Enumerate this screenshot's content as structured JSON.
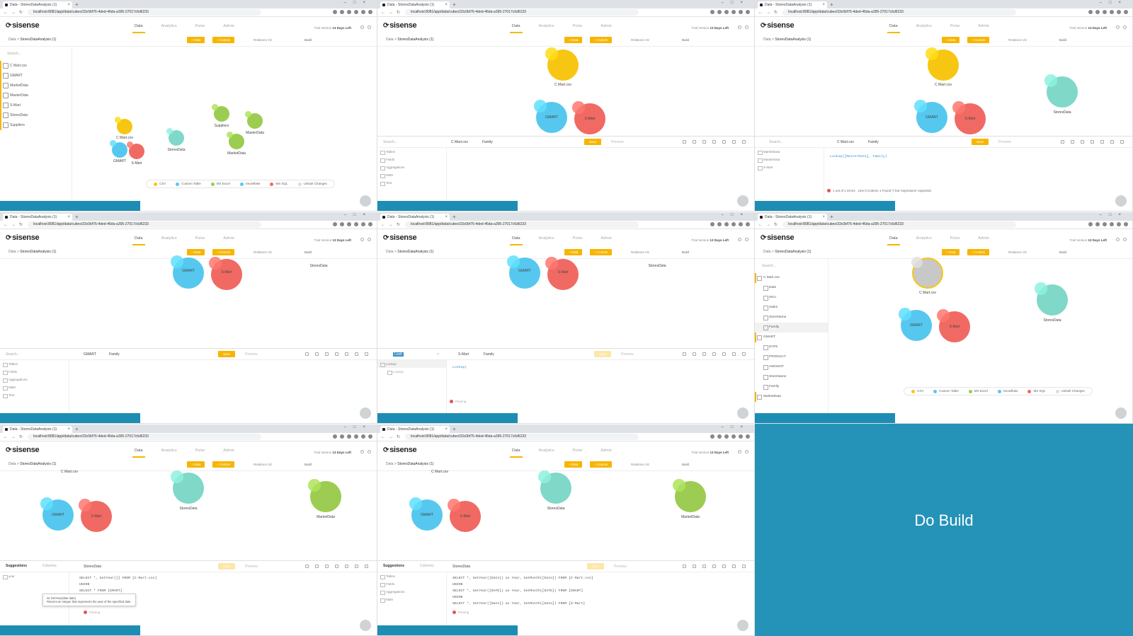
{
  "browser": {
    "tab_title": "Data - StoresDataAnalysis (1)",
    "new_tab": "+",
    "url": "localhost:8081/app/data/cubes/33c0bf76-4ded-46da-a395-27017c6d6233"
  },
  "app": {
    "brand": "sisense",
    "nav": [
      "Data",
      "Analytics",
      "Pulse",
      "Admin"
    ],
    "trial_label": "Trial Version",
    "trial_days": "13 Days Left",
    "breadcrumb_root": "Data",
    "breadcrumb_model": "StoresDataAnalysis (1)",
    "btn_data": "+ Data",
    "btn_custom": "+ Custom",
    "relations_viz": "Relations Viz",
    "build": "Build"
  },
  "sidebar": {
    "search_placeholder": "Search...",
    "datasets": [
      "C Mart.csv",
      "GMART",
      "MarketData",
      "MasterData",
      "S-Mart",
      "StoresData",
      "Suppliers"
    ]
  },
  "bubbles": {
    "cmart": "C Mart.csv",
    "gmart": "GMART",
    "smart": "S-Mart",
    "storesdata": "StoresData",
    "suppliers": "Suppliers",
    "marketdata": "MarketData",
    "masterdata": "MasterData"
  },
  "legend": [
    "CSV",
    "Custom Table",
    "MS Excel",
    "Snowflake",
    "MS SQL",
    "Unbuilt Changes"
  ],
  "editor": {
    "save": "Save",
    "preview": "Preview",
    "cmart_name": "C Mart.csv",
    "family": "Family",
    "gmart_name": "GMART",
    "smart_name": "S-Mart",
    "storesdata_name": "StoresData",
    "left_items": [
      "Tables",
      "Fields",
      "Aggregations",
      "Math",
      "Text"
    ],
    "code_lookup": "Lookup([MasterData], Family)",
    "code_lookup_short": "Lookup(",
    "error_count": "1 out of 1 errors",
    "error_detail": "Line 0 Column 1   Found ')' but 'expression' expected.",
    "search_term": "Look",
    "suggestion": "Lookup",
    "suggestion_badge": "Lookup",
    "parsing": "Parsing",
    "suggestions_tab": "Suggestions",
    "columns_tab": "Columns",
    "search_year": "year",
    "tooltip_sig": "int GetYear(date date)",
    "tooltip_desc": "Returns an integer that represents the year of the specified date.",
    "sql_1": "SELECT *, GetYear([] FROM [C-Mart.csv]",
    "sql_2": "UNION",
    "sql_3": "SELECT * FROM [GMART]",
    "sql_b1": "SELECT *, GetYear([Date]) as Year, GetMonth([Date]) FROM [C-Mart.csv]",
    "sql_b3": "SELECT *, GetYear([DATE]) as Year, GetMonth([DATE]) FROM [GMART]",
    "sql_b5": "SELECT *, GetYear([Date]) as Year, GetMonth([Date]) FROM [S-Mart]"
  },
  "tree": {
    "cmart": "C Mart.csv",
    "cmart_fields": [
      "Date",
      "SKU",
      "Sales",
      "StoreName",
      "Family"
    ],
    "gmart": "GMART",
    "gmart_fields": [
      "DATE",
      "PRODUCT",
      "AMOUNT",
      "StoreName",
      "Family"
    ],
    "marketdata": "MarketData"
  },
  "final": {
    "caption": "Do Build"
  },
  "colors": {
    "yellow": "#f7c613",
    "blue": "#56c8ef",
    "red": "#f06a63",
    "teal": "#7fd8c8",
    "green": "#9ccc51",
    "accent": "#f7b500",
    "strip": "#1e8db3"
  }
}
